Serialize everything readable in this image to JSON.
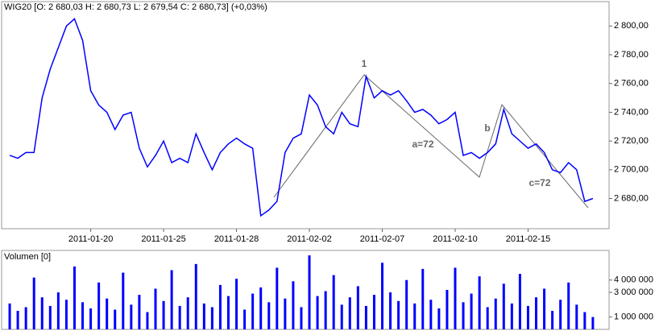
{
  "chart_data": [
    {
      "type": "line",
      "title": "WIG20 [O: 2 680,03  H: 2 680,73  L: 2 679,54  C: 2 680,73] (+0,03%)",
      "color": "#0000ff",
      "values": [
        null,
        2710,
        2708,
        2712,
        2712,
        2750,
        2770,
        2785,
        2800,
        2805,
        2790,
        2755,
        2745,
        2740,
        2728,
        2738,
        2740,
        2715,
        2702,
        2710,
        2720,
        2705,
        2708,
        2705,
        2725,
        2712,
        2700,
        2712,
        2718,
        2722,
        2718,
        2715,
        2668,
        2672,
        2678,
        2712,
        2722,
        2725,
        2752,
        2745,
        2730,
        2725,
        2740,
        2732,
        2730,
        2765,
        2750,
        2755,
        2752,
        2755,
        2748,
        2740,
        2742,
        2738,
        2732,
        2735,
        2740,
        2710,
        2712,
        2708,
        2712,
        2718,
        2742,
        2725,
        2720,
        2715,
        2718,
        2712,
        2700,
        2698,
        2705,
        2700,
        2678,
        2680
      ],
      "xlim": [
        0,
        75
      ],
      "xticks": [
        {
          "value": 11,
          "label": "2011-01-20"
        },
        {
          "value": 20,
          "label": "2011-01-25"
        },
        {
          "value": 29,
          "label": "2011-01-28"
        },
        {
          "value": 38,
          "label": "2011-02-02"
        },
        {
          "value": 47,
          "label": "2011-02-07"
        },
        {
          "value": 56,
          "label": "2011-02-10"
        },
        {
          "value": 65,
          "label": "2011-02-15"
        }
      ],
      "ylim": [
        2659,
        2817
      ],
      "yticks": [
        {
          "value": 2680,
          "label": "2 680,00"
        },
        {
          "value": 2700,
          "label": "2 700,00"
        },
        {
          "value": 2720,
          "label": "2 720,00"
        },
        {
          "value": 2740,
          "label": "2 740,00"
        },
        {
          "value": 2760,
          "label": "2 760,00"
        },
        {
          "value": 2780,
          "label": "2 780,00"
        },
        {
          "value": 2800,
          "label": "2 800,00"
        }
      ],
      "annotations": [
        "1",
        "a=72",
        "b",
        "c=72"
      ]
    },
    {
      "type": "bar",
      "title": "Volumen [0]",
      "color": "#0000ff",
      "values": [
        null,
        2100000,
        1500000,
        1800000,
        4200000,
        2600000,
        1900000,
        3000000,
        2400000,
        5100000,
        2200000,
        1700000,
        3800000,
        2500000,
        1600000,
        4600000,
        2000000,
        2800000,
        1400000,
        3300000,
        2300000,
        4800000,
        1900000,
        2600000,
        5300000,
        2100000,
        1800000,
        3600000,
        2700000,
        4100000,
        1600000,
        2900000,
        3400000,
        2200000,
        5000000,
        2500000,
        3900000,
        1800000,
        6000000,
        2700000,
        3100000,
        4400000,
        2000000,
        2600000,
        3500000,
        1900000,
        2800000,
        5400000,
        3000000,
        2300000,
        4000000,
        2100000,
        4900000,
        2400000,
        1700000,
        3200000,
        5000000,
        2200000,
        2900000,
        4300000,
        1800000,
        2500000,
        3700000,
        2100000,
        4500000,
        1900000,
        2600000,
        3300000,
        1500000,
        2400000,
        3800000,
        2000000,
        1400000,
        1000000
      ],
      "xlim": [
        0,
        75
      ],
      "ylim": [
        0,
        6400000
      ],
      "yticks": [
        {
          "value": 1000000,
          "label": "1 000 000"
        },
        {
          "value": 3000000,
          "label": "3 000 000"
        },
        {
          "value": 4000000,
          "label": "4 000 000"
        }
      ]
    }
  ]
}
